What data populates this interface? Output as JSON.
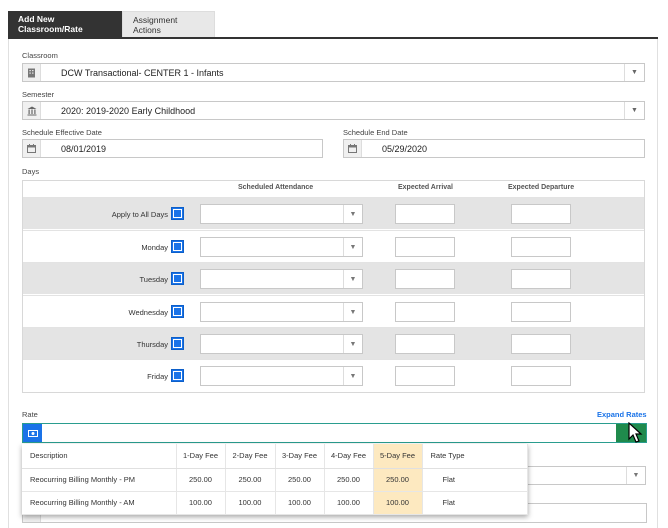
{
  "tabs": [
    {
      "label": "Add New Classroom/Rate"
    },
    {
      "label": "Assignment Actions"
    }
  ],
  "classroom": {
    "label": "Classroom",
    "value": "DCW Transactional- CENTER 1 - Infants"
  },
  "semester": {
    "label": "Semester",
    "value": "2020: 2019-2020 Early Childhood"
  },
  "effective_date": {
    "label": "Schedule Effective Date",
    "value": "08/01/2019"
  },
  "end_date": {
    "label": "Schedule End Date",
    "value": "05/29/2020"
  },
  "days": {
    "label": "Days",
    "columns": {
      "attendance": "Scheduled Attendance",
      "arrival": "Expected Arrival",
      "departure": "Expected Departure"
    },
    "rows": [
      {
        "label": "Apply to All Days"
      },
      {
        "label": "Monday"
      },
      {
        "label": "Tuesday"
      },
      {
        "label": "Wednesday"
      },
      {
        "label": "Thursday"
      },
      {
        "label": "Friday"
      }
    ]
  },
  "rate": {
    "label": "Rate",
    "expand_label": "Expand Rates",
    "table": {
      "headers": [
        "Description",
        "1-Day Fee",
        "2-Day Fee",
        "3-Day Fee",
        "4-Day Fee",
        "5-Day Fee",
        "Rate Type"
      ],
      "rows": [
        {
          "desc": "Reocurring Billing Monthly - PM",
          "f1": "250.00",
          "f2": "250.00",
          "f3": "250.00",
          "f4": "250.00",
          "f5": "250.00",
          "type": "Flat"
        },
        {
          "desc": "Reocurring Billing Monthly - AM",
          "f1": "100.00",
          "f2": "100.00",
          "f3": "100.00",
          "f4": "100.00",
          "f5": "100.00",
          "type": "Flat"
        }
      ]
    }
  },
  "colors": {
    "accent": "#1a73e8",
    "tab_active": "#333333",
    "highlight": "#fde9c0",
    "green": "#1f8a4c"
  }
}
